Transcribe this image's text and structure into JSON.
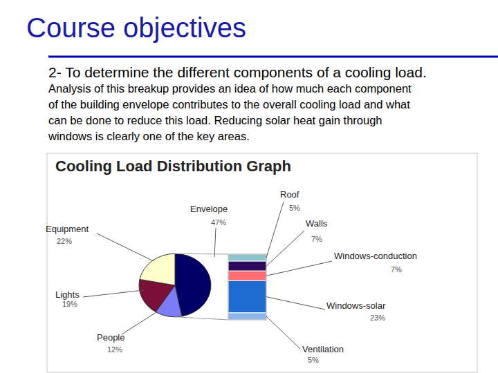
{
  "slide": {
    "title": "Course objectives",
    "heading": "2- To determine the different components of a cooling load.",
    "text": [
      "Analysis of this breakup provides an idea of how much each component",
      "of the building envelope contributes to the overall cooling load and what",
      "can be done to reduce this load. Reducing solar heat gain through",
      "windows is clearly one of the key areas."
    ]
  },
  "chart_data": [
    {
      "type": "pie",
      "title": "Cooling Load Distribution Graph",
      "categories": [
        "Envelope",
        "People",
        "Lights",
        "Equipment"
      ],
      "values": [
        47,
        12,
        19,
        22
      ],
      "value_labels": [
        "47%",
        "12%",
        "19%",
        "22%"
      ],
      "colors": [
        "#000066",
        "#7b7bf7",
        "#7a1038",
        "#ffffcc"
      ],
      "data_labels": true
    },
    {
      "type": "bar",
      "stacked": true,
      "categories": [
        "Roof",
        "Walls",
        "Windows-conduction",
        "Windows-solar",
        "Ventilation"
      ],
      "values": [
        5,
        7,
        7,
        23,
        5
      ],
      "value_labels": [
        "5%",
        "7%",
        "7%",
        "23%",
        "5%"
      ],
      "colors": [
        "#8cc4cc",
        "#2e0a5e",
        "#ff6f6f",
        "#1e6cd2",
        "#8fb6ea"
      ],
      "data_labels": true
    }
  ]
}
